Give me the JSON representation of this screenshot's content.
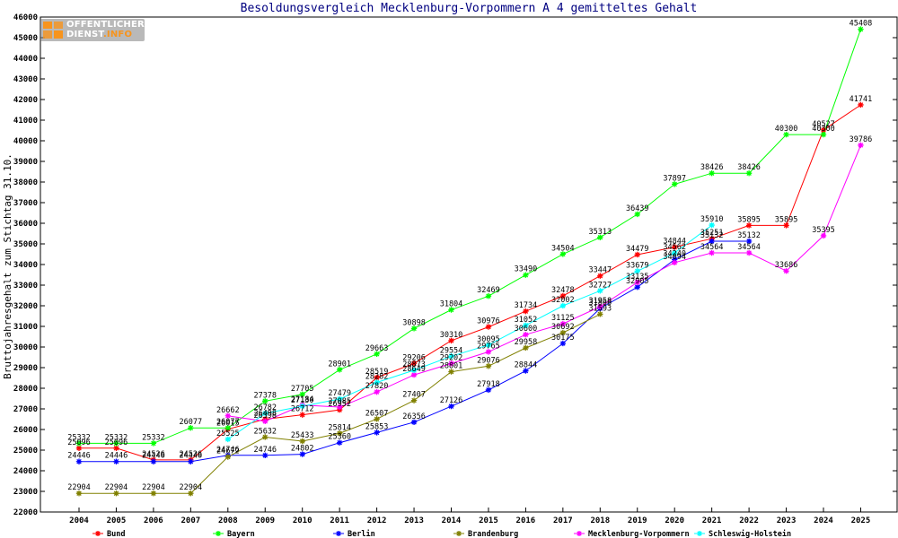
{
  "chart_data": {
    "type": "line",
    "title": "Besoldungsvergleich Mecklenburg-Vorpommern A 4 gemitteltes Gehalt",
    "xlabel": "",
    "ylabel": "Bruttojahresgehalt zum Stichtag 31.10.",
    "ylim": [
      22000,
      46000
    ],
    "ytick_step": 1000,
    "grid": false,
    "legend": "bottom",
    "x": [
      "2004",
      "2005",
      "2006",
      "2007",
      "2008",
      "2009",
      "2010",
      "2011",
      "2012",
      "2013",
      "2014",
      "2015",
      "2016",
      "2017",
      "2018",
      "2019",
      "2020",
      "2021",
      "2022",
      "2023",
      "2024",
      "2025"
    ],
    "series": [
      {
        "name": "Bund",
        "color": "#ff0000",
        "values": [
          25096,
          25096,
          24526,
          24526,
          26015,
          26498,
          26712,
          26952,
          28519,
          29206,
          30310,
          30976,
          31734,
          32478,
          33447,
          34479,
          34844,
          35251,
          35895,
          35895,
          40527,
          41741
        ]
      },
      {
        "name": "Bayern",
        "color": "#00ff00",
        "values": [
          25332,
          25332,
          25332,
          26077,
          26077,
          27378,
          27705,
          28901,
          29663,
          30898,
          31804,
          32469,
          33490,
          34504,
          35313,
          36439,
          37897,
          38426,
          38426,
          40300,
          40300,
          45408
        ]
      },
      {
        "name": "Berlin",
        "color": "#0000ff",
        "values": [
          24446,
          24446,
          24446,
          24446,
          24746,
          24746,
          24802,
          25360,
          25853,
          26356,
          27126,
          27918,
          28844,
          30175,
          31868,
          32905,
          34240,
          35132,
          35132,
          null,
          null,
          null
        ]
      },
      {
        "name": "Brandenburg",
        "color": "#808000",
        "values": [
          22904,
          22904,
          22904,
          22904,
          24672,
          25632,
          25433,
          25814,
          26507,
          27407,
          28801,
          29076,
          29958,
          30692,
          31593,
          null,
          null,
          null,
          null,
          null,
          null,
          null
        ]
      },
      {
        "name": "Mecklenburg-Vorpommern",
        "color": "#ff00ff",
        "values": [
          null,
          null,
          null,
          null,
          26662,
          26398,
          27184,
          27085,
          27820,
          28649,
          29202,
          29765,
          30600,
          31125,
          31958,
          33135,
          34094,
          34564,
          34564,
          33686,
          35395,
          39786
        ]
      },
      {
        "name": "Schleswig-Holstein",
        "color": "#00ffff",
        "values": [
          null,
          null,
          null,
          null,
          25525,
          26782,
          27130,
          27479,
          28282,
          28873,
          29554,
          30095,
          31052,
          32002,
          32727,
          33679,
          34562,
          35910,
          null,
          null,
          null,
          null
        ]
      }
    ]
  },
  "logo": {
    "line1": "OFFENTLICHER",
    "line2a": "DIENST",
    "line2b": ".INFO"
  }
}
